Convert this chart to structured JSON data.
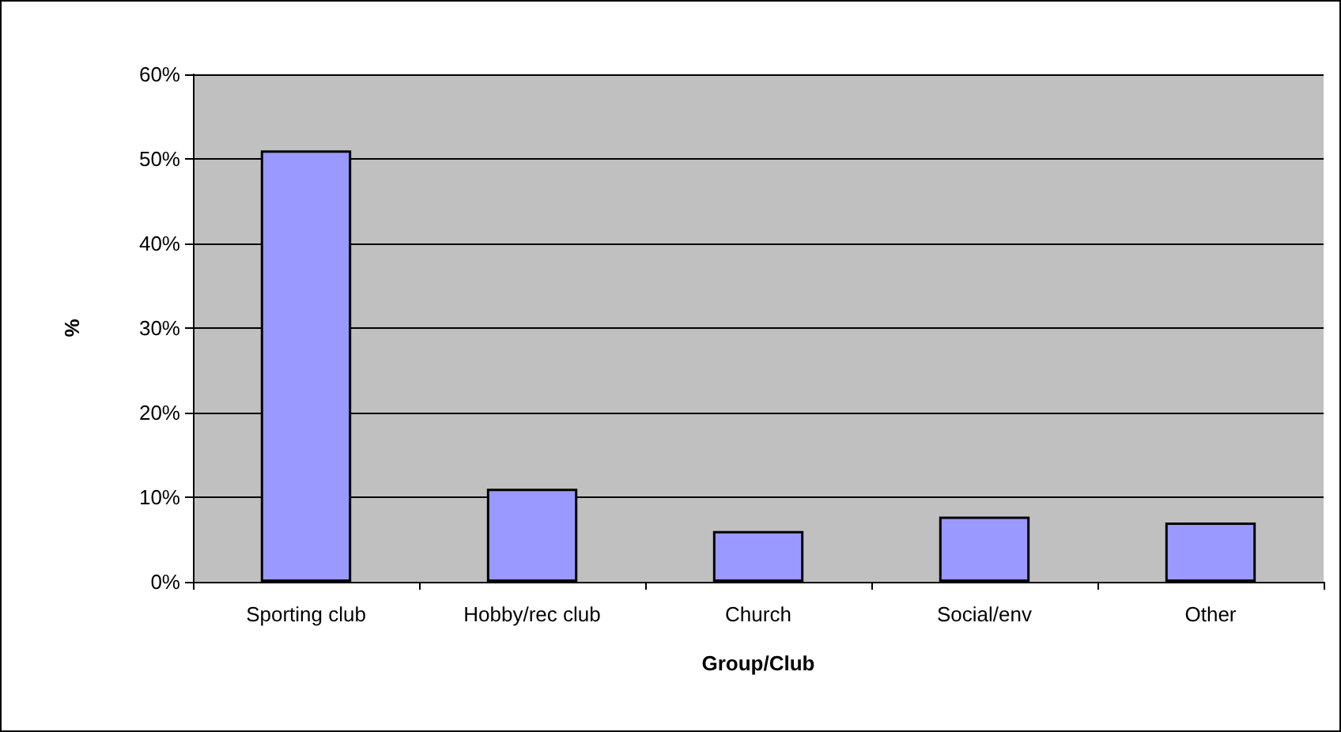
{
  "chart_data": {
    "type": "bar",
    "xlabel": "Group/Club",
    "ylabel": "%",
    "categories": [
      "Sporting club",
      "Hobby/rec club",
      "Church",
      "Social/env",
      "Other"
    ],
    "values": [
      51,
      11,
      6,
      7.7,
      7
    ],
    "color": "#9999ff",
    "ylim": [
      0,
      60
    ],
    "yticks": [
      {
        "value": 0,
        "label": "0%"
      },
      {
        "value": 10,
        "label": "10%"
      },
      {
        "value": 20,
        "label": "20%"
      },
      {
        "value": 30,
        "label": "30%"
      },
      {
        "value": 40,
        "label": "40%"
      },
      {
        "value": 50,
        "label": "50%"
      },
      {
        "value": 60,
        "label": "60%"
      }
    ],
    "grid": true
  }
}
